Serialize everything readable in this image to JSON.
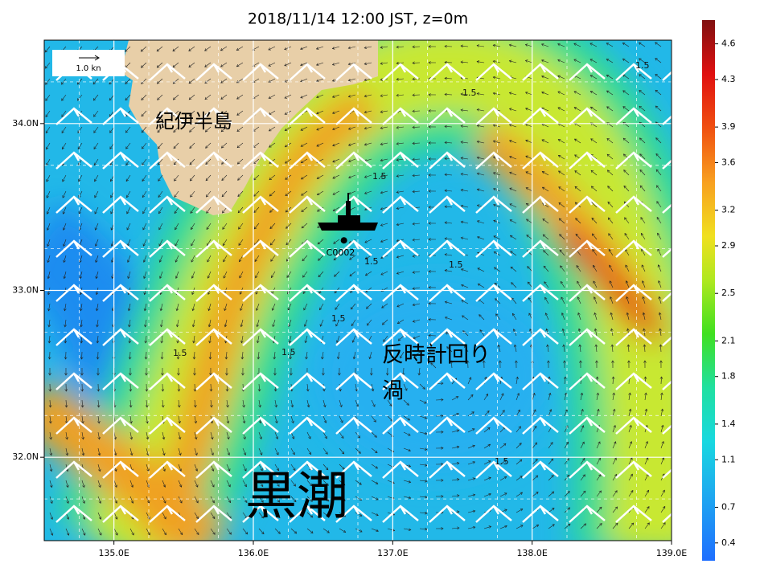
{
  "title": "2018/11/14 12:00 JST, z=0m",
  "map": {
    "xlim": [
      134.5,
      139.0
    ],
    "ylim": [
      31.5,
      34.5
    ],
    "xticks": [
      {
        "value": 135,
        "label": "135.0E"
      },
      {
        "value": 136,
        "label": "136.0E"
      },
      {
        "value": 137,
        "label": "137.0E"
      },
      {
        "value": 138,
        "label": "138.0E"
      },
      {
        "value": 139,
        "label": "139.0E"
      }
    ],
    "yticks": [
      {
        "value": 32,
        "label": "32.0N"
      },
      {
        "value": 33,
        "label": "33.0N"
      },
      {
        "value": 34,
        "label": "34.0N"
      }
    ],
    "grid": true
  },
  "colorbar": {
    "lim": [
      0.25,
      4.8
    ],
    "ticks": [
      0.4,
      0.7,
      1.1,
      1.4,
      1.8,
      2.1,
      2.5,
      2.9,
      3.2,
      3.6,
      3.9,
      4.3,
      4.6
    ]
  },
  "scale_label": "1.0 kn",
  "station": {
    "name": "C0002",
    "lon": 136.65,
    "lat": 33.3
  },
  "labels": {
    "peninsula": "紀伊半島",
    "eddy_line1": "反時計回り",
    "eddy_line2": "渦",
    "kuroshio": "黒潮"
  },
  "contour_labels": [
    "1.5",
    "1.5",
    "1.5",
    "1.5",
    "1.5",
    "1.5",
    "1.5",
    "1.5",
    "1.5"
  ]
}
